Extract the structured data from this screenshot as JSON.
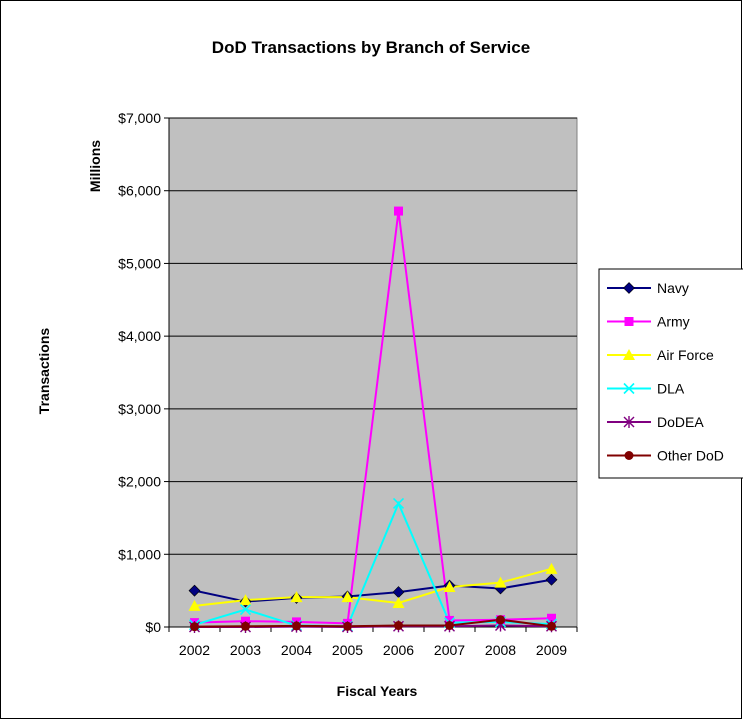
{
  "chart_data": {
    "type": "line",
    "title": "DoD Transactions by Branch of Service",
    "xlabel": "Fiscal Years",
    "ylabel": "Transactions",
    "yunit_label": "Millions",
    "categories": [
      "2002",
      "2003",
      "2004",
      "2005",
      "2006",
      "2007",
      "2008",
      "2009"
    ],
    "ylim": [
      0,
      7000
    ],
    "yticks": [
      0,
      1000,
      2000,
      3000,
      4000,
      5000,
      6000,
      7000
    ],
    "ytick_labels": [
      "$0",
      "$1,000",
      "$2,000",
      "$3,000",
      "$4,000",
      "$5,000",
      "$6,000",
      "$7,000"
    ],
    "grid": true,
    "plot_background": "#c0c0c0",
    "legend_position": "right",
    "series": [
      {
        "name": "Navy",
        "color": "#000080",
        "marker": "diamond",
        "values": [
          500,
          350,
          400,
          420,
          480,
          570,
          530,
          650
        ]
      },
      {
        "name": "Army",
        "color": "#ff00ff",
        "marker": "square",
        "values": [
          60,
          80,
          70,
          50,
          5720,
          90,
          100,
          120
        ]
      },
      {
        "name": "Air Force",
        "color": "#ffff00",
        "marker": "triangle",
        "values": [
          290,
          370,
          410,
          410,
          330,
          550,
          610,
          800
        ]
      },
      {
        "name": "DLA",
        "color": "#00ffff",
        "marker": "x",
        "values": [
          30,
          240,
          20,
          10,
          1700,
          60,
          70,
          40
        ]
      },
      {
        "name": "DoDEA",
        "color": "#800080",
        "marker": "asterisk",
        "values": [
          0,
          0,
          5,
          0,
          10,
          10,
          20,
          10
        ]
      },
      {
        "name": "Other DoD",
        "color": "#800000",
        "marker": "circle",
        "values": [
          5,
          10,
          15,
          10,
          20,
          20,
          100,
          10
        ]
      }
    ]
  }
}
